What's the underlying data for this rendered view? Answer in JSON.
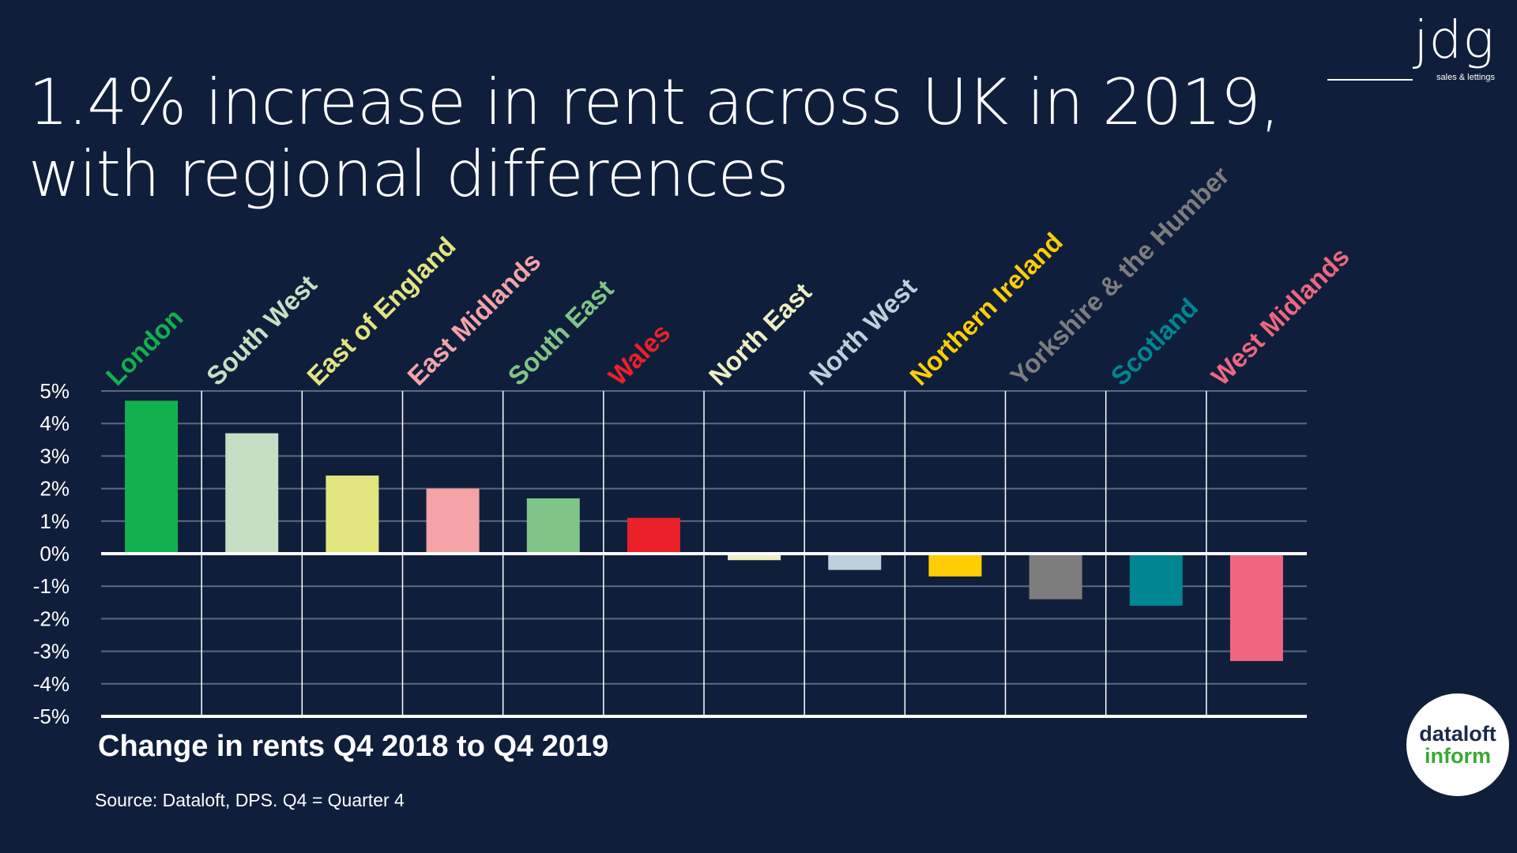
{
  "title_line1": "1.4% increase in rent across UK in 2019,",
  "title_line2": "with regional differences",
  "logo": {
    "name": "jdg",
    "tagline": "sales & lettings"
  },
  "caption": "Change in rents Q4 2018 to Q4 2019",
  "source": "Source: Dataloft, DPS. Q4 = Quarter 4",
  "badge": {
    "line1": "dataloft",
    "line2": "inform"
  },
  "colors": {
    "background": "#0f1f3b",
    "grid": "#5d6980",
    "axis": "#ffffff",
    "text": "#ffffff"
  },
  "chart_data": {
    "type": "bar",
    "categories": [
      "London",
      "South West",
      "East of England",
      "East Midlands",
      "South East",
      "Wales",
      "North East",
      "North West",
      "Northern Ireland",
      "Yorkshire & the Humber",
      "Scotland",
      "West Midlands"
    ],
    "values": [
      4.7,
      3.7,
      2.4,
      2.0,
      1.7,
      1.1,
      -0.2,
      -0.5,
      -0.7,
      -1.4,
      -1.6,
      -3.3
    ],
    "colors": [
      "#13b14d",
      "#c5dfc4",
      "#e2e57f",
      "#f4a3a7",
      "#7fc588",
      "#ec2028",
      "#eef0c2",
      "#bcd0dc",
      "#ffcd05",
      "#7d7d7d",
      "#008592",
      "#ef6680"
    ],
    "ylim": [
      -5,
      5
    ],
    "yticks": [
      "5%",
      "4%",
      "3%",
      "2%",
      "1%",
      "0%",
      "-1%",
      "-2%",
      "-3%",
      "-4%",
      "-5%"
    ],
    "grid": true,
    "xlabel": "Change in rents Q4 2018 to Q4 2019",
    "ylabel": "",
    "legend": "none"
  }
}
